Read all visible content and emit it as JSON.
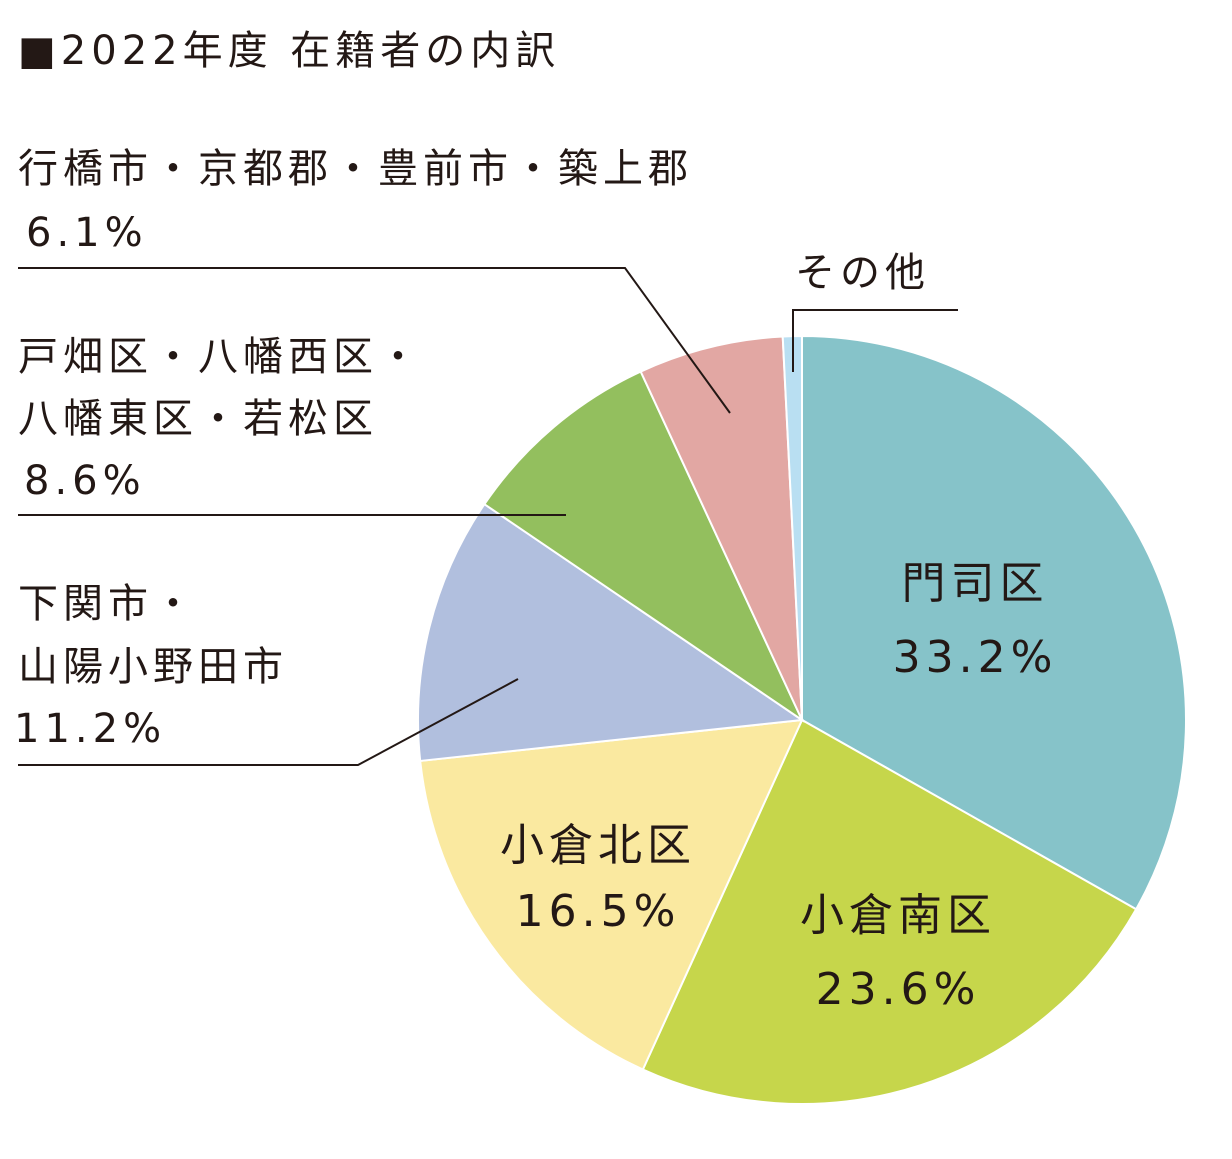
{
  "title": "■2022年度 在籍者の内訳",
  "chart_data": {
    "type": "pie",
    "title": "■2022年度 在籍者の内訳",
    "unit": "%",
    "start": "12 o'clock",
    "direction": "clockwise",
    "slices": [
      {
        "name": "門司区",
        "value": 33.2,
        "value_label": "33.2%",
        "color": "#86c3c9",
        "label_position": "inside"
      },
      {
        "name": "小倉南区",
        "value": 23.6,
        "value_label": "23.6%",
        "color": "#c6d64b",
        "label_position": "inside"
      },
      {
        "name": "小倉北区",
        "value": 16.5,
        "value_label": "16.5%",
        "color": "#fae9a0",
        "label_position": "inside"
      },
      {
        "name_lines": [
          "下関市・",
          "山陽小野田市"
        ],
        "value": 11.2,
        "value_label": "11.2%",
        "color": "#b1bfde",
        "label_position": "outside-left"
      },
      {
        "name_lines": [
          "戸畑区・八幡西区・",
          "八幡東区・若松区"
        ],
        "value": 8.6,
        "value_label": "8.6%",
        "color": "#93bf5e",
        "label_position": "outside-left"
      },
      {
        "name_lines": [
          "行橋市・京都郡・豊前市・築上郡"
        ],
        "value": 6.1,
        "value_label": "6.1%",
        "color": "#e2a7a3",
        "label_position": "outside-left"
      },
      {
        "name": "その他",
        "value": 0.8,
        "color": "#b9dff2",
        "label_position": "outside-top"
      }
    ]
  }
}
